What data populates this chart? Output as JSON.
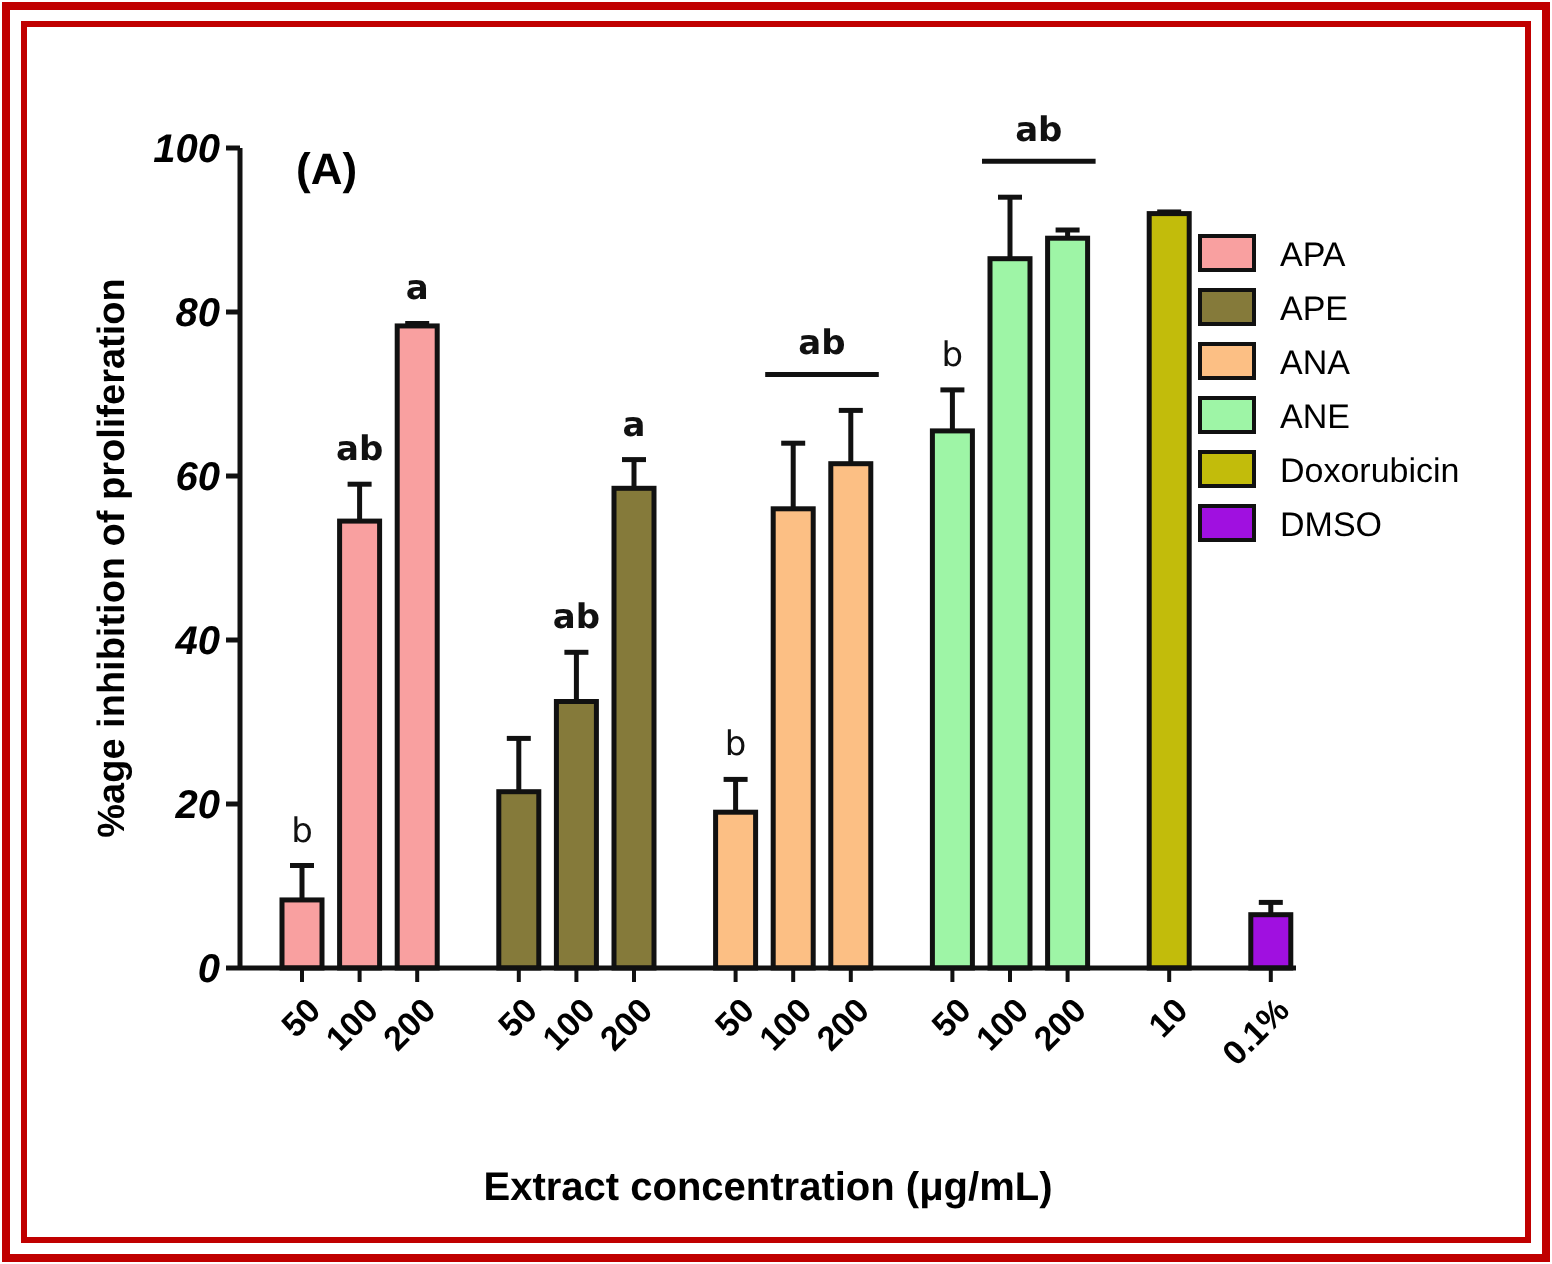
{
  "chart_data": {
    "type": "bar",
    "title": "(A)",
    "xlabel": "Extract concentration (μg/mL)",
    "ylabel": "%age inhibition of proliferation",
    "categories": [
      "50",
      "100",
      "200",
      "50",
      "100",
      "200",
      "50",
      "100",
      "200",
      "50",
      "100",
      "200",
      "10",
      "0.1%"
    ],
    "series": [
      {
        "name": "APA",
        "color": "#f9a0a0",
        "values": [
          8.3,
          54.5,
          78.3,
          null,
          null,
          null,
          null,
          null,
          null,
          null,
          null,
          null,
          null,
          null
        ],
        "errors": [
          4.2,
          4.5,
          0.3,
          null,
          null,
          null,
          null,
          null,
          null,
          null,
          null,
          null,
          null,
          null
        ]
      },
      {
        "name": "APE",
        "color": "#857a3a",
        "values": [
          null,
          null,
          null,
          21.5,
          32.5,
          58.5,
          null,
          null,
          null,
          null,
          null,
          null,
          null,
          null
        ],
        "errors": [
          null,
          null,
          null,
          6.5,
          6,
          3.5,
          null,
          null,
          null,
          null,
          null,
          null,
          null,
          null
        ]
      },
      {
        "name": "ANA",
        "color": "#fcbf84",
        "values": [
          null,
          null,
          null,
          null,
          null,
          null,
          19,
          56,
          61.5,
          null,
          null,
          null,
          null,
          null
        ],
        "errors": [
          null,
          null,
          null,
          null,
          null,
          null,
          4,
          8,
          6.5,
          null,
          null,
          null,
          null,
          null
        ]
      },
      {
        "name": "ANE",
        "color": "#9ef5a6",
        "values": [
          null,
          null,
          null,
          null,
          null,
          null,
          null,
          null,
          null,
          65.5,
          86.5,
          89,
          null,
          null
        ],
        "errors": [
          null,
          null,
          null,
          null,
          null,
          null,
          null,
          null,
          null,
          5,
          7.5,
          1,
          null,
          null
        ]
      },
      {
        "name": "Doxorubicin",
        "color": "#c2bc0b",
        "values": [
          null,
          null,
          null,
          null,
          null,
          null,
          null,
          null,
          null,
          null,
          null,
          null,
          92,
          null
        ],
        "errors": [
          null,
          null,
          null,
          null,
          null,
          null,
          null,
          null,
          null,
          null,
          null,
          null,
          0.2,
          null
        ]
      },
      {
        "name": "DMSO",
        "color": "#a010e0",
        "values": [
          null,
          null,
          null,
          null,
          null,
          null,
          null,
          null,
          null,
          null,
          null,
          null,
          null,
          6.5
        ],
        "errors": [
          null,
          null,
          null,
          null,
          null,
          null,
          null,
          null,
          null,
          null,
          null,
          null,
          null,
          1.5
        ]
      }
    ],
    "annotations": [
      "b",
      "ab",
      "a",
      "ab",
      "a",
      "b",
      "ab",
      "b",
      "ab"
    ],
    "ylim": [
      0,
      100
    ],
    "yticks": [
      0,
      20,
      40,
      60,
      80,
      100
    ],
    "legend": "top right"
  }
}
